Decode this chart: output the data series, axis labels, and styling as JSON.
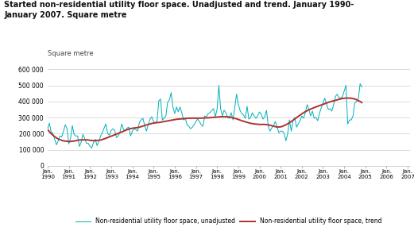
{
  "title": "Started non-residential utility floor space. Unadjusted and trend. January 1990-\nJanuary 2007. Square metre",
  "ylabel": "Square metre",
  "ylim": [
    0,
    650000
  ],
  "yticks": [
    0,
    100000,
    200000,
    300000,
    400000,
    500000,
    600000
  ],
  "ytick_labels": [
    "0",
    "100 000",
    "200 000",
    "300 000",
    "400 000",
    "500 000",
    "600 000"
  ],
  "color_unadj": "#00b0b9",
  "color_trend": "#b03030",
  "legend_unadj": "Non-residential utility floor space, unadjusted",
  "legend_trend": "Non-residential utility floor space, trend",
  "background_color": "#ffffff",
  "unadjusted": [
    230000,
    265000,
    210000,
    200000,
    165000,
    130000,
    155000,
    185000,
    180000,
    215000,
    255000,
    230000,
    135000,
    170000,
    250000,
    195000,
    185000,
    185000,
    120000,
    145000,
    195000,
    170000,
    140000,
    140000,
    120000,
    110000,
    145000,
    165000,
    125000,
    150000,
    185000,
    205000,
    235000,
    260000,
    200000,
    190000,
    220000,
    230000,
    220000,
    175000,
    185000,
    210000,
    260000,
    225000,
    215000,
    235000,
    240000,
    185000,
    215000,
    230000,
    225000,
    215000,
    270000,
    285000,
    295000,
    250000,
    215000,
    255000,
    290000,
    305000,
    275000,
    265000,
    280000,
    405000,
    415000,
    285000,
    295000,
    310000,
    395000,
    410000,
    455000,
    365000,
    325000,
    365000,
    335000,
    365000,
    330000,
    285000,
    295000,
    255000,
    245000,
    230000,
    240000,
    255000,
    275000,
    290000,
    275000,
    255000,
    245000,
    310000,
    305000,
    325000,
    330000,
    345000,
    355000,
    305000,
    350000,
    500000,
    355000,
    310000,
    345000,
    330000,
    300000,
    295000,
    330000,
    285000,
    360000,
    445000,
    385000,
    345000,
    325000,
    315000,
    295000,
    370000,
    290000,
    300000,
    330000,
    310000,
    295000,
    310000,
    335000,
    320000,
    290000,
    305000,
    345000,
    245000,
    215000,
    235000,
    250000,
    275000,
    240000,
    205000,
    215000,
    215000,
    200000,
    155000,
    200000,
    285000,
    215000,
    280000,
    300000,
    240000,
    260000,
    280000,
    310000,
    295000,
    330000,
    380000,
    350000,
    310000,
    340000,
    295000,
    300000,
    280000,
    325000,
    360000,
    390000,
    420000,
    385000,
    350000,
    355000,
    340000,
    380000,
    430000,
    445000,
    425000,
    420000,
    430000,
    465000,
    500000,
    260000,
    285000,
    285000,
    310000,
    390000,
    400000,
    415000,
    510000,
    490000
  ],
  "trend": [
    225000,
    212000,
    200000,
    190000,
    181000,
    173000,
    167000,
    162000,
    158000,
    155000,
    153000,
    152000,
    151000,
    151000,
    152000,
    154000,
    156000,
    158000,
    160000,
    161000,
    161000,
    161000,
    161000,
    160000,
    158000,
    157000,
    156000,
    156000,
    157000,
    158000,
    160000,
    163000,
    167000,
    171000,
    175000,
    180000,
    184000,
    188000,
    193000,
    197000,
    201000,
    206000,
    210000,
    215000,
    220000,
    224000,
    228000,
    231000,
    233000,
    235000,
    236000,
    238000,
    240000,
    243000,
    247000,
    250000,
    254000,
    257000,
    260000,
    263000,
    265000,
    267000,
    268000,
    269000,
    271000,
    273000,
    275000,
    277000,
    279000,
    281000,
    283000,
    285000,
    287000,
    289000,
    290000,
    291000,
    292000,
    293000,
    294000,
    295000,
    296000,
    296000,
    296000,
    296000,
    296000,
    296000,
    296000,
    296000,
    297000,
    297000,
    298000,
    298000,
    299000,
    300000,
    301000,
    302000,
    303000,
    304000,
    305000,
    305000,
    305000,
    305000,
    304000,
    303000,
    301000,
    298000,
    295000,
    292000,
    288000,
    284000,
    280000,
    277000,
    273000,
    270000,
    267000,
    264000,
    262000,
    260000,
    259000,
    258000,
    257000,
    257000,
    257000,
    257000,
    256000,
    254000,
    252000,
    249000,
    246000,
    243000,
    241000,
    241000,
    242000,
    245000,
    250000,
    255000,
    261000,
    268000,
    275000,
    283000,
    291000,
    299000,
    307000,
    315000,
    323000,
    330000,
    337000,
    342000,
    348000,
    353000,
    357000,
    362000,
    366000,
    370000,
    374000,
    378000,
    382000,
    386000,
    390000,
    394000,
    398000,
    401000,
    404000,
    407000,
    410000,
    413000,
    416000,
    418000,
    420000,
    421000,
    421000,
    421000,
    420000,
    418000,
    415000,
    411000,
    405000,
    400000,
    393000
  ],
  "start_year": 1990,
  "xlim_left": 1990,
  "xlim_right": 2007.1
}
